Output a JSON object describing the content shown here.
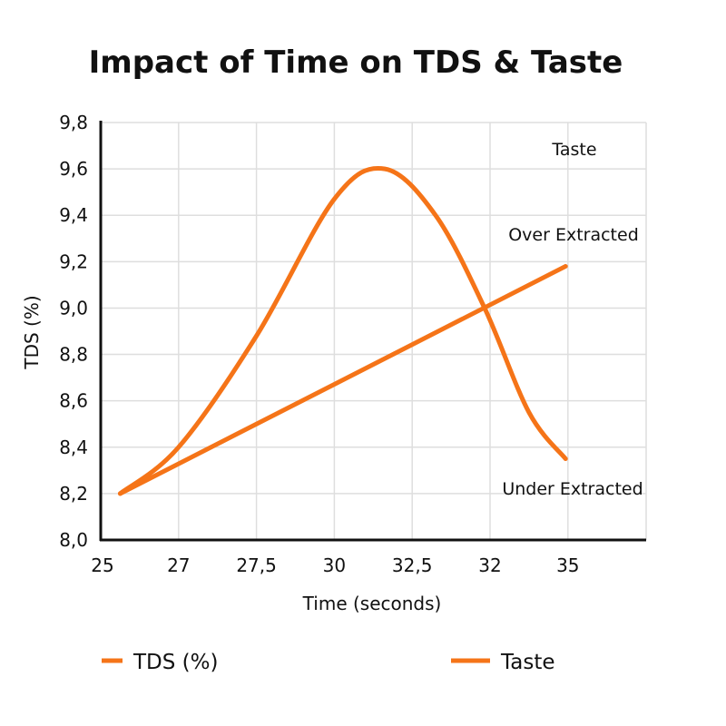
{
  "chart_data": {
    "type": "line",
    "title": "Impact of Time on TDS & Taste",
    "xlabel": "Time (seconds)",
    "ylabel": "TDS (%)",
    "x_tick_labels": [
      "25",
      "27",
      "27,5",
      "30",
      "32,5",
      "32",
      "35"
    ],
    "y_tick_labels": [
      "8,0",
      "8,2",
      "8,4",
      "8,6",
      "8,8",
      "9,0",
      "9,2",
      "9,4",
      "9,6",
      "9,8"
    ],
    "ylim": [
      8.0,
      9.8
    ],
    "grid": true,
    "legend_placement": "bottom",
    "color": "#f57418",
    "series": [
      {
        "name": "TDS (%)",
        "shape": "straight",
        "points": [
          {
            "x_position": 0.25,
            "y": 8.2
          },
          {
            "x_position": 5.97,
            "y": 9.18
          }
        ]
      },
      {
        "name": "Taste",
        "shape": "curve",
        "points": [
          {
            "x_position": 0.25,
            "y": 8.2
          },
          {
            "x_position": 1.0,
            "y": 8.4
          },
          {
            "x_position": 2.0,
            "y": 8.88
          },
          {
            "x_position": 3.0,
            "y": 9.47
          },
          {
            "x_position": 3.65,
            "y": 9.6
          },
          {
            "x_position": 4.3,
            "y": 9.4
          },
          {
            "x_position": 4.93,
            "y": 9.0
          },
          {
            "x_position": 5.5,
            "y": 8.55
          },
          {
            "x_position": 5.97,
            "y": 8.35
          }
        ]
      }
    ],
    "annotations": [
      "Taste",
      "Over Extracted",
      "Under Extracted"
    ]
  }
}
